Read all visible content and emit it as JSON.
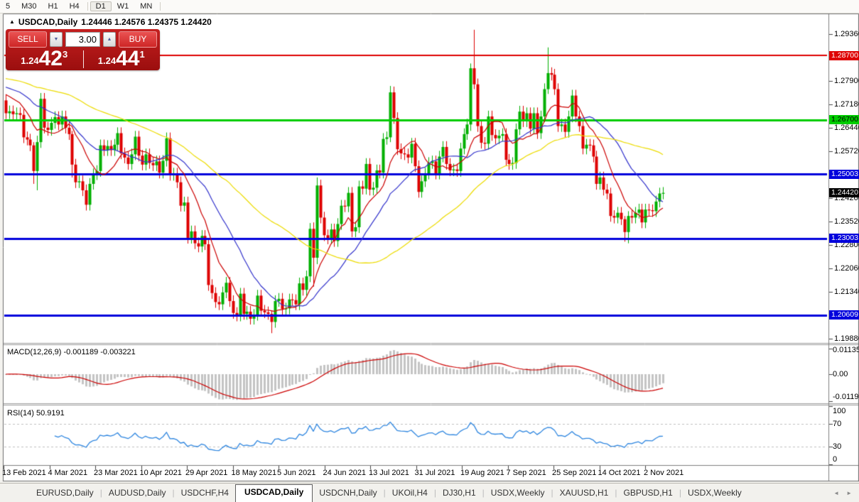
{
  "toolbar": {
    "periods": [
      "5",
      "M30",
      "H1",
      "H4",
      "D1",
      "W1",
      "MN"
    ],
    "active": "D1"
  },
  "chart": {
    "marker": "▲",
    "title": "USDCAD,Daily",
    "quotes": "1.24446 1.24576 1.24375 1.24420"
  },
  "trade_panel": {
    "sell_label": "SELL",
    "buy_label": "BUY",
    "lot_size": "3.00",
    "decrease_icon": "▼",
    "increase_icon": "▲",
    "sell_price": {
      "prefix": "1.24",
      "big": "42",
      "sup": "3"
    },
    "buy_price": {
      "prefix": "1.24",
      "big": "44",
      "sup": "1"
    }
  },
  "price_axis": {
    "ticks": [
      {
        "t": "1.29360",
        "p": 1.2936
      },
      {
        "t": "1.27900",
        "p": 1.279
      },
      {
        "t": "1.27180",
        "p": 1.2718
      },
      {
        "t": "1.26440",
        "p": 1.2644
      },
      {
        "t": "1.25720",
        "p": 1.2572
      },
      {
        "t": "1.24260",
        "p": 1.2426
      },
      {
        "t": "1.23520",
        "p": 1.2352
      },
      {
        "t": "1.22800",
        "p": 1.228
      },
      {
        "t": "1.22060",
        "p": 1.2206
      },
      {
        "t": "1.21340",
        "p": 1.2134
      },
      {
        "t": "1.19880",
        "p": 1.1988
      }
    ],
    "special": [
      {
        "t": "1.28700",
        "p": 1.287,
        "bg": "#DE0000",
        "fg": "#FFFFFF"
      },
      {
        "t": "1.26700",
        "p": 1.267,
        "bg": "#00CC00",
        "fg": "#000000"
      },
      {
        "t": "1.25003",
        "p": 1.25003,
        "bg": "#0000DC",
        "fg": "#FFFFFF"
      },
      {
        "t": "1.23003",
        "p": 1.23003,
        "bg": "#0000DC",
        "fg": "#FFFFFF"
      },
      {
        "t": "1.20609",
        "p": 1.20609,
        "bg": "#0000DC",
        "fg": "#FFFFFF"
      }
    ],
    "current": {
      "t": "1.24420",
      "p": 1.2442,
      "bg": "#000000",
      "fg": "#FFFFFF"
    }
  },
  "macd_panel": {
    "label": "MACD(12,26,9) -0.001189 -0.003221",
    "axis": [
      {
        "t": "0.01135",
        "v": 0.01135
      },
      {
        "t": "0.00",
        "v": 0
      },
      {
        "t": "-0.011904",
        "v": -0.0119
      }
    ]
  },
  "rsi_panel": {
    "label": "RSI(14) 50.9191",
    "axis": [
      {
        "t": "100",
        "v": 100
      },
      {
        "t": "70",
        "v": 70
      },
      {
        "t": "30",
        "v": 30
      },
      {
        "t": "0",
        "v": 0
      }
    ],
    "dashed": [
      70,
      30
    ]
  },
  "date_axis": {
    "labels": [
      "13 Feb 2021",
      "4 Mar 2021",
      "23 Mar 2021",
      "10 Apr 2021",
      "29 Apr 2021",
      "18 May 2021",
      "5 Jun 2021",
      "24 Jun 2021",
      "13 Jul 2021",
      "31 Jul 2021",
      "19 Aug 2021",
      "7 Sep 2021",
      "25 Sep 2021",
      "14 Oct 2021",
      "2 Nov 2021"
    ]
  },
  "bottom_tabs": {
    "items": [
      "EURUSD,Daily",
      "AUDUSD,Daily",
      "USDCHF,H4",
      "USDCAD,Daily",
      "USDCNH,Daily",
      "UKOil,H4",
      "DJ30,H1",
      "USDX,Weekly",
      "XAUUSD,H1",
      "GBPUSD,H1",
      "USDX,Weekly"
    ],
    "active_index": 3,
    "separator": "|",
    "scroll_left": "◄",
    "scroll_right": "►"
  },
  "chart_data": {
    "type": "candlestick",
    "symbol": "USDCAD",
    "timeframe": "Daily",
    "price_axis_range": {
      "top": 1.2994,
      "bottom": 1.1979
    },
    "first_open": 1.273,
    "default_wick": 0.0018,
    "closes": [
      1.269,
      1.2696,
      1.2687,
      1.269,
      1.2685,
      1.2615,
      1.2608,
      1.259,
      1.251,
      1.26,
      1.2735,
      1.2645,
      1.2638,
      1.266,
      1.2678,
      1.2655,
      1.268,
      1.2645,
      1.2625,
      1.253,
      1.2475,
      1.2478,
      1.245,
      1.2405,
      1.247,
      1.25,
      1.251,
      1.259,
      1.2575,
      1.2588,
      1.2575,
      1.2592,
      1.2628,
      1.2565,
      1.2552,
      1.2532,
      1.2562,
      1.2617,
      1.2558,
      1.253,
      1.2562,
      1.2535,
      1.2528,
      1.254,
      1.2505,
      1.2542,
      1.2612,
      1.2498,
      1.2502,
      1.2475,
      1.2402,
      1.2412,
      1.2302,
      1.2322,
      1.2285,
      1.2275,
      1.2308,
      1.2282,
      1.2155,
      1.213,
      1.2102,
      1.2095,
      1.2132,
      1.2162,
      1.2105,
      1.2068,
      1.206,
      1.2128,
      1.2065,
      1.2072,
      1.205,
      1.2062,
      1.2122,
      1.2075,
      1.207,
      1.2065,
      1.204,
      1.2105,
      1.2112,
      1.208,
      1.2082,
      1.211,
      1.2108,
      1.2095,
      1.216,
      1.214,
      1.2182,
      1.233,
      1.224,
      1.2465,
      1.2365,
      1.231,
      1.23,
      1.2328,
      1.2292,
      1.2345,
      1.2402,
      1.24,
      1.2442,
      1.2322,
      1.2335,
      1.2462,
      1.2455,
      1.2532,
      1.2452,
      1.2458,
      1.2512,
      1.2505,
      1.261,
      1.2615,
      1.2755,
      1.2675,
      1.2578,
      1.2565,
      1.2562,
      1.2552,
      1.2595,
      1.2525,
      1.2445,
      1.2478,
      1.2502,
      1.2535,
      1.254,
      1.2502,
      1.2555,
      1.2585,
      1.2532,
      1.2512,
      1.2515,
      1.251,
      1.258,
      1.2625,
      1.2655,
      1.283,
      1.278,
      1.265,
      1.2598,
      1.2595,
      1.268,
      1.2622,
      1.2612,
      1.262,
      1.2625,
      1.2545,
      1.2532,
      1.2535,
      1.264,
      1.2695,
      1.2665,
      1.269,
      1.2642,
      1.269,
      1.2628,
      1.268,
      1.2765,
      1.2815,
      1.281,
      1.2765,
      1.265,
      1.2655,
      1.2632,
      1.268,
      1.2745,
      1.268,
      1.265,
      1.258,
      1.2592,
      1.259,
      1.2555,
      1.247,
      1.249,
      1.2452,
      1.244,
      1.237,
      1.2365,
      1.238,
      1.236,
      1.232,
      1.237,
      1.2365,
      1.238,
      1.239,
      1.235,
      1.239,
      1.2388,
      1.2385,
      1.2415,
      1.244,
      1.2442
    ],
    "wick_overrides": {
      "8": [
        0.001,
        0.004
      ],
      "9": [
        0.002,
        0.006
      ],
      "19": [
        0.001,
        0.004
      ],
      "76": [
        0.001,
        0.0035
      ],
      "88": [
        0.002,
        0.009
      ],
      "89": [
        0.0025,
        0.002
      ],
      "110": [
        0.002,
        0.0015
      ],
      "133": [
        0.0015,
        0.002
      ],
      "134": [
        0.012,
        0.0015
      ],
      "155": [
        0.008,
        0.0015
      ],
      "177": [
        0.001,
        0.003
      ],
      "178": [
        0.0015,
        0.0035
      ]
    },
    "colors": {
      "bull": "#00AF00",
      "bear": "#DE0000",
      "macd_hist": "#C4C4C4",
      "macd_signal": "#CC0000",
      "rsi": "#2E86E0"
    },
    "hlines": [
      {
        "price": 1.287,
        "color": "#DE0000",
        "width": 2
      },
      {
        "price": 1.267,
        "color": "#00CC00",
        "width": 3
      },
      {
        "price": 1.25003,
        "color": "#0000DC",
        "width": 3
      },
      {
        "price": 1.23003,
        "color": "#0000DC",
        "width": 3
      },
      {
        "price": 1.20609,
        "color": "#0000DC",
        "width": 3
      }
    ],
    "mas": [
      {
        "period": 10,
        "color": "#CC0000",
        "seed": 1.2755
      },
      {
        "period": 22,
        "color": "#3333CC",
        "seed": 1.2775
      },
      {
        "period": 55,
        "color": "#EDDC00",
        "seed": 1.28
      }
    ],
    "macd": {
      "fast": 12,
      "slow": 26,
      "signal": 9,
      "axis_max": 0.0119
    },
    "rsi": {
      "period": 14
    }
  }
}
